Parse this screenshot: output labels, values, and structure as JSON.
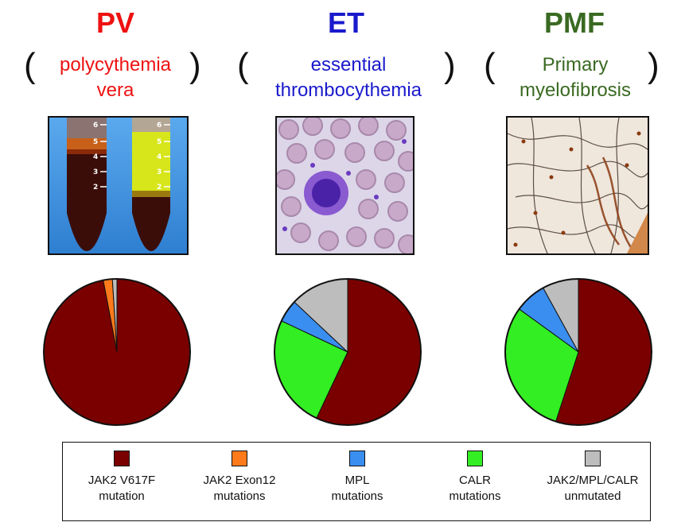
{
  "colors": {
    "jak2_v617f": "#7a0000",
    "jak2_exon12": "#ff7a1a",
    "mpl": "#3a8ef0",
    "calr": "#33ee22",
    "unmutated": "#bdbdbd"
  },
  "groups": [
    {
      "abbr": "PV",
      "color": "#ee1111",
      "line1": "polycythemia",
      "line2": "vera",
      "image": "blood-tubes"
    },
    {
      "abbr": "ET",
      "color": "#1a1acc",
      "line1": "essential",
      "line2": "thrombocythemia",
      "image": "blood-smear"
    },
    {
      "abbr": "PMF",
      "color": "#3a6a22",
      "line1": "Primary",
      "line2": "myelofibrosis",
      "image": "marrow-biopsy"
    }
  ],
  "chart_data": {
    "type": "pie",
    "pies": [
      {
        "name": "PV",
        "slices": [
          {
            "category": "JAK2 V617F mutation",
            "value": 97
          },
          {
            "category": "JAK2 Exon12 mutations",
            "value": 2
          },
          {
            "category": "JAK2/MPL/CALR unmutated",
            "value": 1
          }
        ]
      },
      {
        "name": "ET",
        "slices": [
          {
            "category": "JAK2 V617F mutation",
            "value": 57
          },
          {
            "category": "CALR mutations",
            "value": 25
          },
          {
            "category": "MPL mutations",
            "value": 5
          },
          {
            "category": "JAK2/MPL/CALR unmutated",
            "value": 13
          }
        ]
      },
      {
        "name": "PMF",
        "slices": [
          {
            "category": "JAK2 V617F mutation",
            "value": 55
          },
          {
            "category": "CALR mutations",
            "value": 30
          },
          {
            "category": "MPL mutations",
            "value": 7
          },
          {
            "category": "JAK2/MPL/CALR unmutated",
            "value": 8
          }
        ]
      }
    ]
  },
  "legend": [
    {
      "line1": "JAK2 V617F",
      "line2": "mutation",
      "color": "#7a0000"
    },
    {
      "line1": "JAK2 Exon12",
      "line2": "mutations",
      "color": "#ff7a1a"
    },
    {
      "line1": "MPL",
      "line2": "mutations",
      "color": "#3a8ef0"
    },
    {
      "line1": "CALR",
      "line2": "mutations",
      "color": "#33ee22"
    },
    {
      "line1": "JAK2/MPL/CALR",
      "line2": "unmutated",
      "color": "#bdbdbd"
    }
  ]
}
